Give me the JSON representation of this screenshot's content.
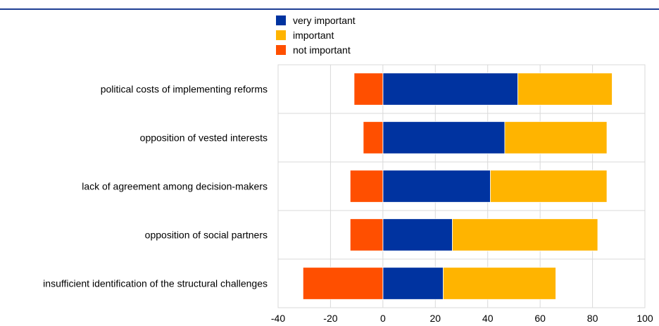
{
  "chart_data": {
    "type": "bar",
    "orientation": "horizontal",
    "stacked": true,
    "categories": [
      "political costs of implementing reforms",
      "opposition of vested interests",
      "lack of agreement among decision-makers",
      "opposition of social partners ",
      "insufficient identification of the structural challenges"
    ],
    "series": [
      {
        "name": "very important",
        "color": "#0033a0",
        "values": [
          51.5,
          46.5,
          41,
          26.5,
          23
        ]
      },
      {
        "name": "important",
        "color": "#ffb400",
        "values": [
          36,
          39,
          44.5,
          55.5,
          43
        ]
      },
      {
        "name": "not important",
        "color": "#ff4f00",
        "values": [
          -11,
          -7.5,
          -12.5,
          -12.5,
          -30.5
        ]
      }
    ],
    "xlim": [
      -40,
      100
    ],
    "xticks": [
      -40,
      -20,
      0,
      20,
      40,
      60,
      80,
      100
    ],
    "grid": true,
    "legend": "top-center"
  }
}
